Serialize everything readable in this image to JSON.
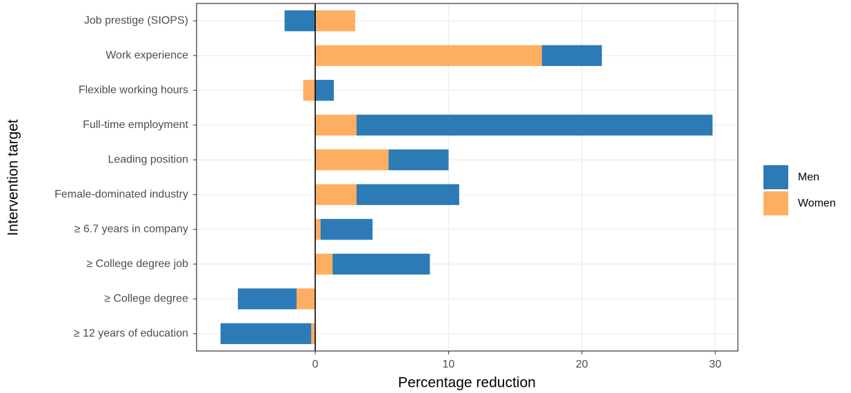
{
  "chart_data": {
    "type": "stacked-barh",
    "xlabel": "Percentage reduction",
    "ylabel": "Intervention target",
    "categories": [
      "Job prestige (SIOPS)",
      "Work experience",
      "Flexible working hours",
      "Full-time employment",
      "Leading position",
      "Female-dominated industry",
      "≥ 6.7 years in company",
      "≥ College degree job",
      "≥ College degree",
      "≥ 12 years of education"
    ],
    "series": [
      {
        "name": "Men",
        "color": "#2c7bb6",
        "values": [
          -2.3,
          4.5,
          1.4,
          26.7,
          4.5,
          7.7,
          3.9,
          7.3,
          -4.4,
          -6.8
        ]
      },
      {
        "name": "Women",
        "color": "#fdae61",
        "values": [
          3.0,
          17.0,
          -0.9,
          3.1,
          5.5,
          3.1,
          0.4,
          1.3,
          -1.4,
          -0.3
        ]
      }
    ],
    "xlim": [
      -8.9,
      31.7
    ],
    "xticks": [
      0,
      10,
      20,
      30
    ],
    "vline": 0,
    "grid": true,
    "legend": "right"
  }
}
